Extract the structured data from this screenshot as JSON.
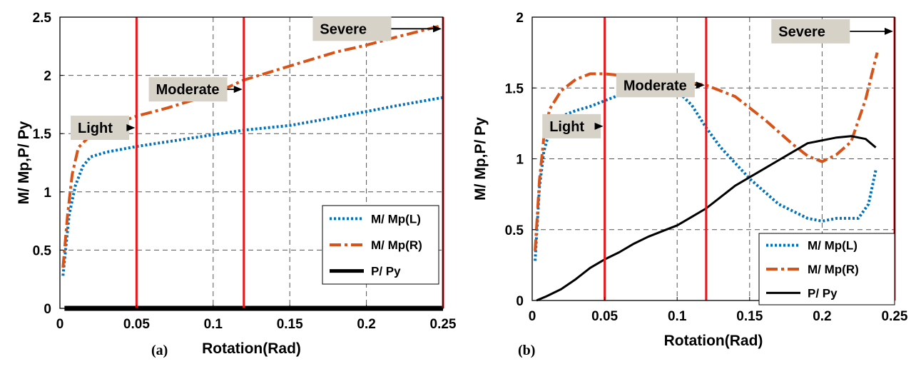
{
  "chart_data": [
    {
      "type": "line",
      "title": "",
      "xlabel": "Rotation(Rad)",
      "ylabel": "M/ Mp,P/ Py",
      "xlim": [
        0,
        0.25
      ],
      "ylim": [
        0,
        2.5
      ],
      "xticks": [
        0,
        0.05,
        0.1,
        0.15,
        0.2,
        0.25
      ],
      "xtick_labels": [
        "0",
        "0.05",
        "0.1",
        "0.15",
        "0.2",
        "0.25"
      ],
      "yticks": [
        0,
        0.5,
        1,
        1.5,
        2,
        2.5
      ],
      "ytick_labels": [
        "0",
        "0.5",
        "1",
        "1.5",
        "2",
        "2.5"
      ],
      "grid": true,
      "legend_position": "bottom-right",
      "caption": "(a)",
      "series": [
        {
          "name": "M/ Mp(L)",
          "color": "#0072BD",
          "style": "dotted",
          "x": [
            0.002,
            0.006,
            0.01,
            0.015,
            0.02,
            0.03,
            0.05,
            0.08,
            0.1,
            0.12,
            0.15,
            0.18,
            0.2,
            0.22,
            0.25
          ],
          "y": [
            0.28,
            0.8,
            1.05,
            1.22,
            1.3,
            1.34,
            1.39,
            1.45,
            1.49,
            1.53,
            1.57,
            1.64,
            1.69,
            1.74,
            1.81
          ]
        },
        {
          "name": "M/ Mp(R)",
          "color": "#D95319",
          "style": "dashdot",
          "x": [
            0.002,
            0.005,
            0.008,
            0.012,
            0.018,
            0.025,
            0.035,
            0.05,
            0.07,
            0.09,
            0.11,
            0.12,
            0.15,
            0.18,
            0.2,
            0.22,
            0.25
          ],
          "y": [
            0.35,
            0.8,
            1.15,
            1.38,
            1.46,
            1.52,
            1.58,
            1.65,
            1.72,
            1.8,
            1.9,
            1.96,
            2.08,
            2.2,
            2.26,
            2.33,
            2.43
          ]
        },
        {
          "name": "P/ Py",
          "color": "#000000",
          "style": "solid",
          "width": 7,
          "x": [
            0.003,
            0.25
          ],
          "y": [
            0,
            0
          ]
        }
      ],
      "vlines": [
        0.05,
        0.12,
        0.25
      ],
      "annotations": [
        {
          "text": "Light",
          "x": 0.007,
          "y": 1.55,
          "arrow_to": [
            0.05,
            1.55
          ]
        },
        {
          "text": "Moderate",
          "x": 0.058,
          "y": 1.88,
          "arrow_to": [
            0.12,
            1.88
          ]
        },
        {
          "text": "Severe",
          "x": 0.165,
          "y": 2.4,
          "arrow_to": [
            0.25,
            2.4
          ]
        }
      ]
    },
    {
      "type": "line",
      "title": "",
      "xlabel": "Rotation(Rad)",
      "ylabel": "M/ Mp,P/ Py",
      "xlim": [
        0,
        0.25
      ],
      "ylim": [
        0,
        2
      ],
      "xticks": [
        0,
        0.05,
        0.1,
        0.15,
        0.2,
        0.25
      ],
      "xtick_labels": [
        "0",
        "0.05",
        "0.1",
        "0.15",
        "0.2",
        "0.25"
      ],
      "yticks": [
        0,
        0.5,
        1,
        1.5,
        2
      ],
      "ytick_labels": [
        "0",
        "0.5",
        "1",
        "1.5",
        "2"
      ],
      "grid": true,
      "legend_position": "bottom-right",
      "caption": "(b)",
      "series": [
        {
          "name": "M/ Mp(L)",
          "color": "#0072BD",
          "style": "dotted",
          "x": [
            0.002,
            0.005,
            0.008,
            0.012,
            0.02,
            0.03,
            0.04,
            0.05,
            0.06,
            0.07,
            0.09,
            0.1,
            0.11,
            0.12,
            0.13,
            0.15,
            0.17,
            0.19,
            0.2,
            0.21,
            0.225,
            0.232,
            0.237
          ],
          "y": [
            0.28,
            0.8,
            1.05,
            1.2,
            1.3,
            1.34,
            1.37,
            1.41,
            1.45,
            1.48,
            1.49,
            1.48,
            1.38,
            1.22,
            1.08,
            0.86,
            0.68,
            0.58,
            0.56,
            0.58,
            0.58,
            0.68,
            0.92
          ]
        },
        {
          "name": "M/ Mp(R)",
          "color": "#D95319",
          "style": "dashdot",
          "x": [
            0.002,
            0.005,
            0.008,
            0.012,
            0.02,
            0.03,
            0.04,
            0.05,
            0.06,
            0.08,
            0.1,
            0.12,
            0.14,
            0.16,
            0.18,
            0.19,
            0.2,
            0.21,
            0.22,
            0.23,
            0.238
          ],
          "y": [
            0.35,
            0.85,
            1.15,
            1.35,
            1.48,
            1.56,
            1.6,
            1.6,
            1.59,
            1.57,
            1.55,
            1.52,
            1.44,
            1.28,
            1.1,
            1.02,
            0.98,
            1.03,
            1.12,
            1.42,
            1.75
          ]
        },
        {
          "name": "P/ Py",
          "color": "#000000",
          "style": "solid",
          "width": 3,
          "x": [
            0.003,
            0.01,
            0.02,
            0.03,
            0.04,
            0.05,
            0.06,
            0.07,
            0.08,
            0.09,
            0.1,
            0.11,
            0.12,
            0.13,
            0.14,
            0.15,
            0.16,
            0.17,
            0.18,
            0.19,
            0.2,
            0.21,
            0.22,
            0.23,
            0.237
          ],
          "y": [
            0,
            0.03,
            0.08,
            0.15,
            0.23,
            0.29,
            0.34,
            0.4,
            0.45,
            0.49,
            0.53,
            0.59,
            0.65,
            0.73,
            0.81,
            0.87,
            0.93,
            0.99,
            1.05,
            1.11,
            1.13,
            1.15,
            1.16,
            1.14,
            1.08
          ]
        }
      ],
      "vlines": [
        0.05,
        0.12,
        0.25
      ],
      "annotations": [
        {
          "text": "Light",
          "x": 0.007,
          "y": 1.23,
          "arrow_to": [
            0.05,
            1.23
          ]
        },
        {
          "text": "Moderate",
          "x": 0.058,
          "y": 1.52,
          "arrow_to": [
            0.12,
            1.52
          ]
        },
        {
          "text": "Severe",
          "x": 0.165,
          "y": 1.9,
          "arrow_to": [
            0.25,
            1.9
          ]
        }
      ]
    }
  ]
}
